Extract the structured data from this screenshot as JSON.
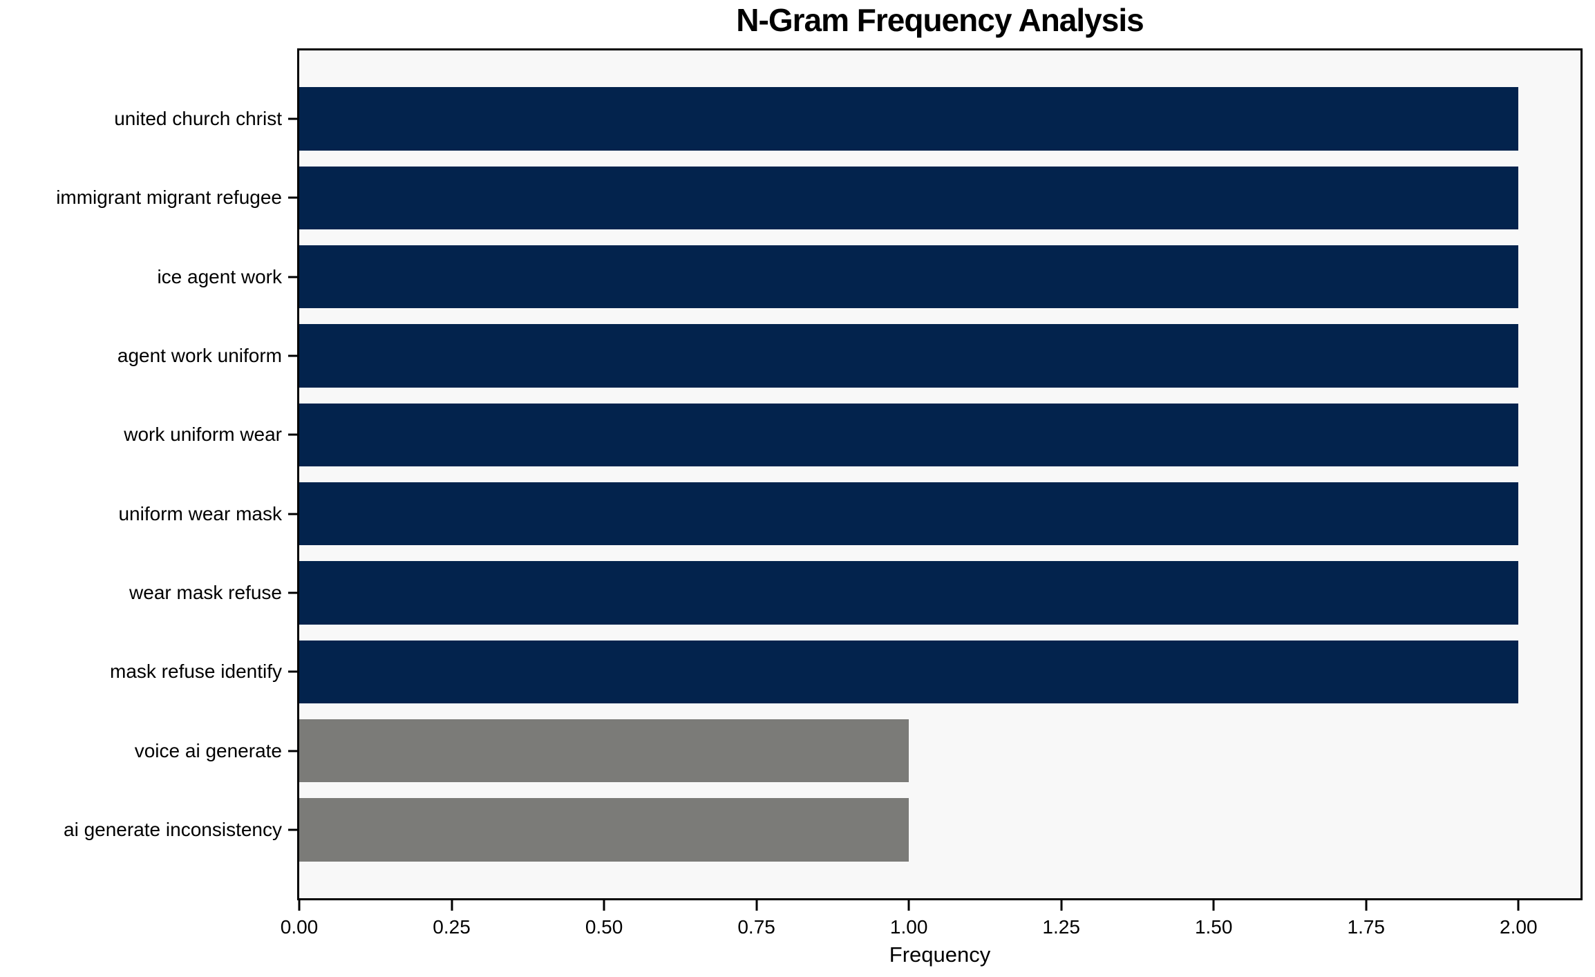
{
  "colors": {
    "high_bar": "#03234d",
    "low_bar": "#7b7b78",
    "plot_background": "#f8f8f8",
    "figure_background": "#ffffff",
    "axis_and_text": "#000000"
  },
  "chart_data": {
    "type": "bar",
    "orientation": "horizontal",
    "title": "N-Gram Frequency Analysis",
    "xlabel": "Frequency",
    "ylabel": "",
    "categories": [
      "united church christ",
      "immigrant migrant refugee",
      "ice agent work",
      "agent work uniform",
      "work uniform wear",
      "uniform wear mask",
      "wear mask refuse",
      "mask refuse identify",
      "voice ai generate",
      "ai generate inconsistency"
    ],
    "values": [
      2,
      2,
      2,
      2,
      2,
      2,
      2,
      2,
      1,
      1
    ],
    "bar_colors": [
      "#03234d",
      "#03234d",
      "#03234d",
      "#03234d",
      "#03234d",
      "#03234d",
      "#03234d",
      "#03234d",
      "#7b7b78",
      "#7b7b78"
    ],
    "xtick_labels": [
      "0.00",
      "0.25",
      "0.50",
      "0.75",
      "1.00",
      "1.25",
      "1.50",
      "1.75",
      "2.00"
    ],
    "xtick_values": [
      0,
      0.25,
      0.5,
      0.75,
      1.0,
      1.25,
      1.5,
      1.75,
      2.0
    ],
    "xlim": [
      0,
      2.1017
    ],
    "grid": false,
    "legend": null,
    "bar_height_fraction": 0.8
  }
}
